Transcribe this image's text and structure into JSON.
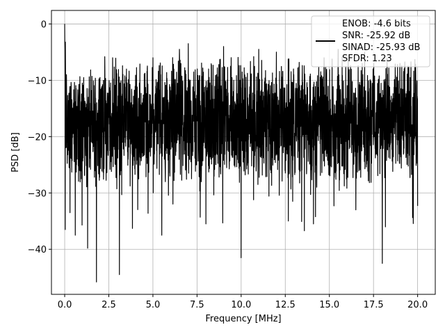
{
  "chart_data": {
    "type": "line",
    "xlabel": "Frequency [MHz]",
    "ylabel": "PSD [dB]",
    "xlim": [
      -0.75,
      21.0
    ],
    "ylim": [
      -48.0,
      2.4
    ],
    "x_ticks": [
      0.0,
      2.5,
      5.0,
      7.5,
      10.0,
      12.5,
      15.0,
      17.5,
      20.0
    ],
    "x_tick_labels": [
      "0.0",
      "2.5",
      "5.0",
      "7.5",
      "10.0",
      "12.5",
      "15.0",
      "17.5",
      "20.0"
    ],
    "y_ticks": [
      0,
      -10,
      -20,
      -30,
      -40
    ],
    "y_tick_labels": [
      "0",
      "−10",
      "−20",
      "−30",
      "−40"
    ],
    "grid": true,
    "legend_position": "top-right",
    "legend_entries": [
      "ENOB: -4.6 bits",
      "SNR: -25.92 dB",
      "SINAD: -25.93 dB",
      "SFDR: 1.23"
    ],
    "series": [
      {
        "color": "#000000",
        "x_range": [
          0.0,
          20.0
        ],
        "description": "noise-like PSD trace, values fluctuate between about -46 and -3 dB",
        "envelope_points": [
          {
            "x": 0.0,
            "y": 0.0
          },
          {
            "x": 0.03,
            "y": -36.5
          },
          {
            "x": 0.1,
            "y": -9.0
          },
          {
            "x": 0.3,
            "y": -33.5
          },
          {
            "x": 0.5,
            "y": -14.0
          },
          {
            "x": 0.6,
            "y": -37.5
          },
          {
            "x": 1.0,
            "y": -10.5
          },
          {
            "x": 1.3,
            "y": -39.8
          },
          {
            "x": 1.8,
            "y": -45.8
          },
          {
            "x": 2.0,
            "y": -9.5
          },
          {
            "x": 3.1,
            "y": -44.5
          },
          {
            "x": 3.5,
            "y": -8.0
          },
          {
            "x": 5.0,
            "y": -6.0
          },
          {
            "x": 5.5,
            "y": -37.5
          },
          {
            "x": 6.5,
            "y": -4.5
          },
          {
            "x": 7.0,
            "y": -3.5
          },
          {
            "x": 8.0,
            "y": -35.5
          },
          {
            "x": 9.0,
            "y": -4.0
          },
          {
            "x": 10.0,
            "y": -41.5
          },
          {
            "x": 11.0,
            "y": -4.5
          },
          {
            "x": 12.0,
            "y": -5.0
          },
          {
            "x": 14.1,
            "y": -35.5
          },
          {
            "x": 15.5,
            "y": -4.5
          },
          {
            "x": 16.5,
            "y": -33.0
          },
          {
            "x": 17.0,
            "y": -5.0
          },
          {
            "x": 18.0,
            "y": -42.5
          },
          {
            "x": 19.0,
            "y": -7.0
          },
          {
            "x": 20.0,
            "y": -32.3
          }
        ]
      }
    ]
  }
}
